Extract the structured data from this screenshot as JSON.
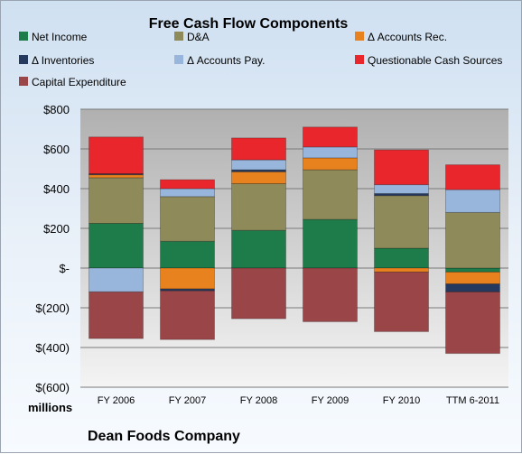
{
  "chart_data": {
    "type": "bar",
    "stacked": true,
    "title": "Free Cash Flow Components",
    "categories": [
      "FY 2006",
      "FY 2007",
      "FY 2008",
      "FY 2009",
      "FY 2010",
      "TTM 6-2011"
    ],
    "ylim": [
      -600,
      800
    ],
    "y_ticks": [
      800,
      600,
      400,
      200,
      0,
      -200,
      -400,
      -600
    ],
    "y_tick_labels": [
      "$800",
      "$600",
      "$400",
      "$200",
      "$-",
      "$(200)",
      "$(400)",
      "$(600)"
    ],
    "units_label": "millions",
    "grid": true,
    "legend_position": "top",
    "series": [
      {
        "name": "Net Income",
        "color": "#1e7b4a",
        "values": [
          225,
          135,
          190,
          245,
          100,
          -20
        ]
      },
      {
        "name": "D&A",
        "color": "#8f8a5a",
        "values": [
          230,
          225,
          235,
          250,
          265,
          280
        ]
      },
      {
        "name": "Δ Accounts Rec.",
        "color": "#e8821e",
        "values": [
          15,
          -105,
          60,
          60,
          -20,
          -60
        ]
      },
      {
        "name": "Δ Inventories",
        "color": "#26395e",
        "values": [
          5,
          -10,
          10,
          0,
          10,
          -40
        ]
      },
      {
        "name": "Δ Accounts Pay.",
        "color": "#98b6dc",
        "values": [
          -120,
          40,
          50,
          55,
          45,
          115
        ]
      },
      {
        "name": "Questionable Cash Sources",
        "color": "#e8262b",
        "values": [
          185,
          45,
          110,
          100,
          175,
          125
        ]
      },
      {
        "name": "Capital Expenditure",
        "color": "#9a4649",
        "values": [
          -235,
          -245,
          -255,
          -270,
          -300,
          -310
        ]
      }
    ]
  },
  "footer": {
    "company": "Dean Foods Company"
  }
}
